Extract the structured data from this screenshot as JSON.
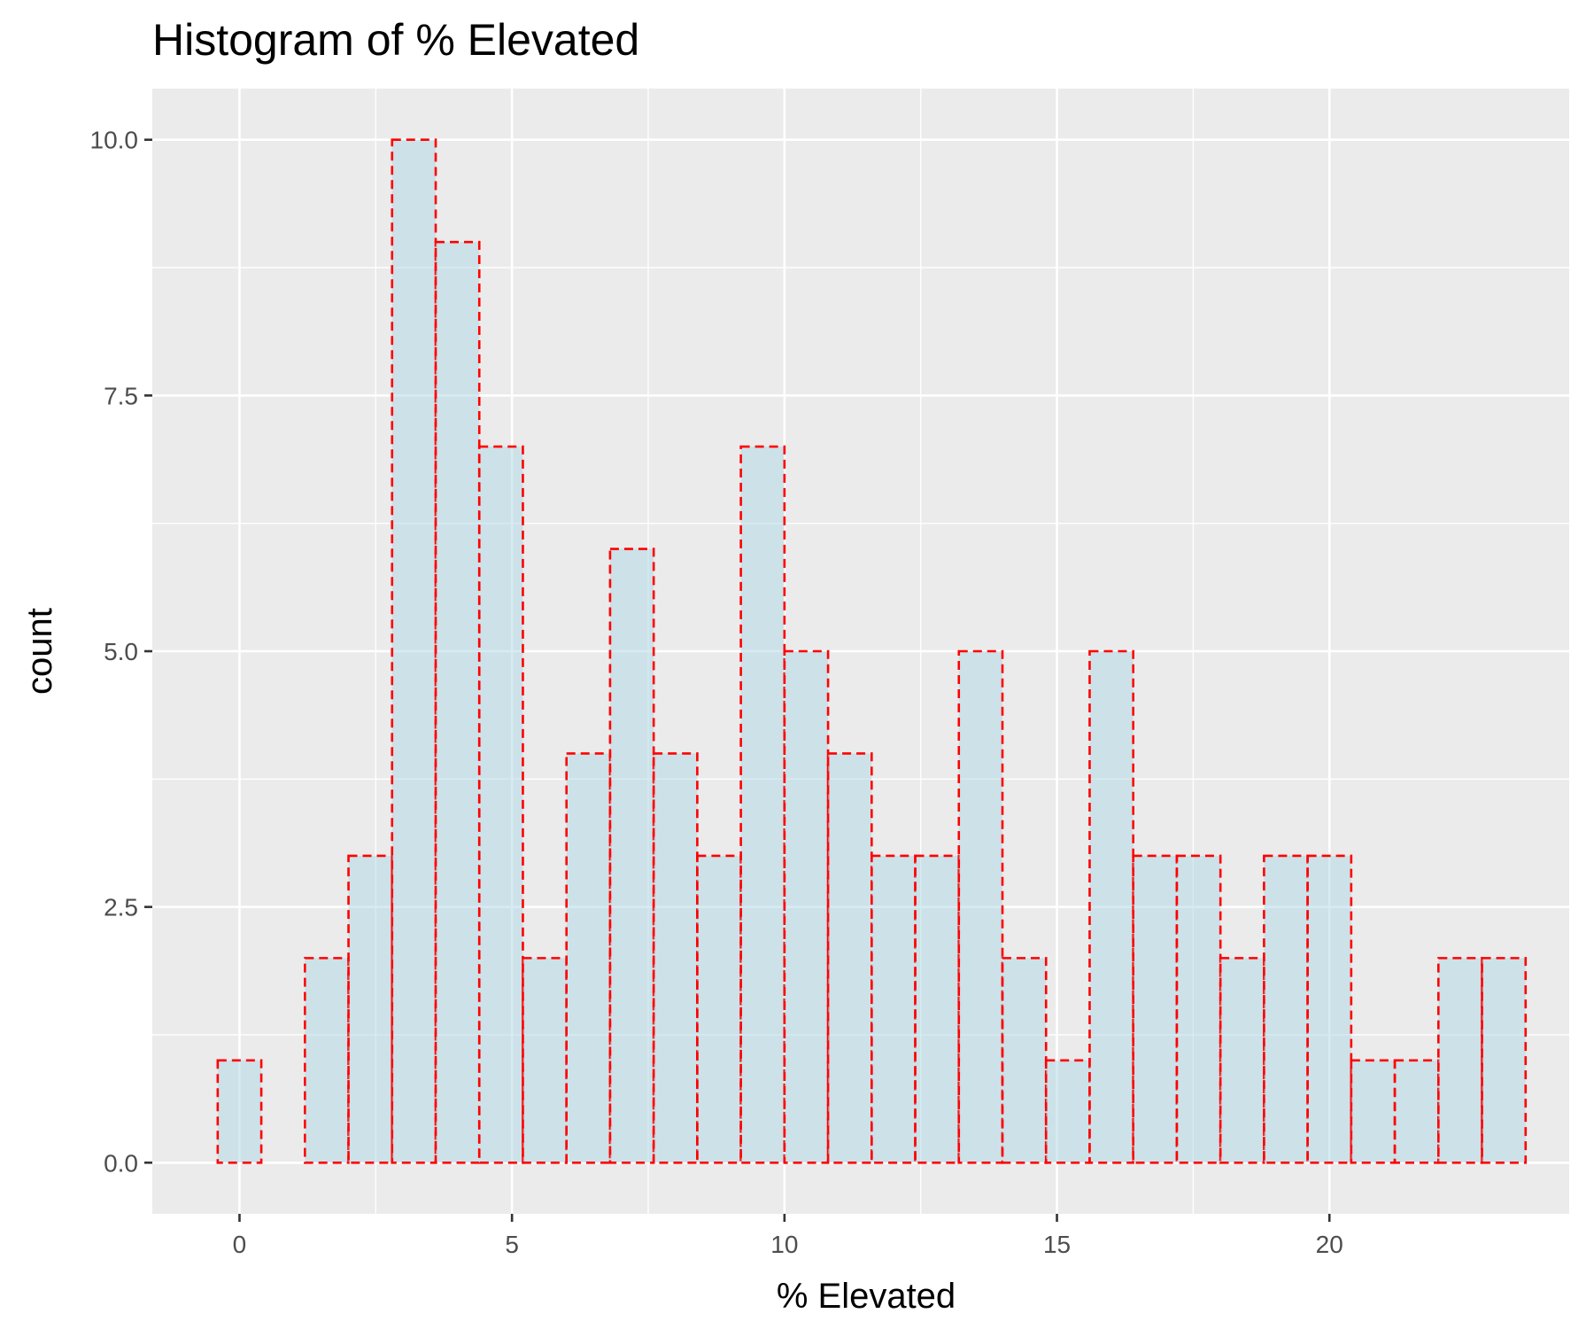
{
  "chart_data": {
    "type": "bar",
    "title": "Histogram of % Elevated",
    "xlabel": "% Elevated",
    "ylabel": "count",
    "bin_width": 0.8,
    "bins": [
      {
        "x": 0.0,
        "count": 1
      },
      {
        "x": 0.8,
        "count": 0
      },
      {
        "x": 1.6,
        "count": 2
      },
      {
        "x": 2.4,
        "count": 3
      },
      {
        "x": 3.2,
        "count": 10
      },
      {
        "x": 4.0,
        "count": 9
      },
      {
        "x": 4.8,
        "count": 7
      },
      {
        "x": 5.6,
        "count": 2
      },
      {
        "x": 6.4,
        "count": 4
      },
      {
        "x": 7.2,
        "count": 6
      },
      {
        "x": 8.0,
        "count": 4
      },
      {
        "x": 8.8,
        "count": 3
      },
      {
        "x": 9.6,
        "count": 7
      },
      {
        "x": 10.4,
        "count": 5
      },
      {
        "x": 11.2,
        "count": 4
      },
      {
        "x": 12.0,
        "count": 3
      },
      {
        "x": 12.8,
        "count": 3
      },
      {
        "x": 13.6,
        "count": 5
      },
      {
        "x": 14.4,
        "count": 2
      },
      {
        "x": 15.2,
        "count": 1
      },
      {
        "x": 16.0,
        "count": 5
      },
      {
        "x": 16.8,
        "count": 3
      },
      {
        "x": 17.6,
        "count": 3
      },
      {
        "x": 18.4,
        "count": 2
      },
      {
        "x": 19.2,
        "count": 3
      },
      {
        "x": 20.0,
        "count": 3
      },
      {
        "x": 20.8,
        "count": 1
      },
      {
        "x": 21.6,
        "count": 1
      },
      {
        "x": 22.4,
        "count": 2
      },
      {
        "x": 23.2,
        "count": 2
      }
    ],
    "xlim": [
      -1.6,
      24.4
    ],
    "ylim": [
      -0.5,
      10.5
    ],
    "x_ticks": [
      0,
      5,
      10,
      15,
      20
    ],
    "x_tick_labels": [
      "0",
      "5",
      "10",
      "15",
      "20"
    ],
    "y_ticks": [
      0,
      2.5,
      5,
      7.5,
      10
    ],
    "y_tick_labels": [
      "0.0",
      "2.5",
      "5.0",
      "7.5",
      "10.0"
    ],
    "grid": true,
    "legend": "none",
    "colors": {
      "panel_background": "#ebebeb",
      "grid": "#ffffff",
      "bar_fill": "#add8e6",
      "bar_outline": "#ff0000",
      "tick_label": "#4d4d4d"
    }
  }
}
